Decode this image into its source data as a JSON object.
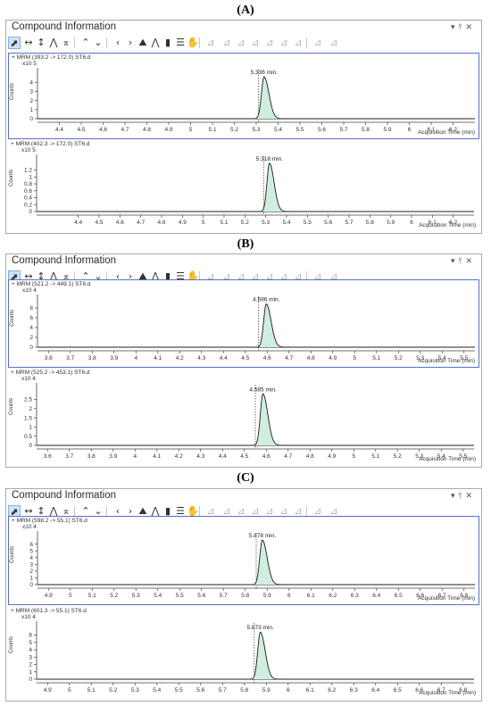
{
  "panel_labels": [
    "(A)",
    "(B)",
    "(C)"
  ],
  "window": {
    "title": "Compound Information",
    "buttons": [
      "▾",
      "⫯",
      "✕"
    ]
  },
  "toolbar": {
    "icons": [
      "select-icon",
      "h-zoom-icon",
      "v-zoom-icon",
      "peak-icon",
      "baseline-icon",
      "up-icon",
      "down-icon",
      "prev-icon",
      "next-icon",
      "chart-icon",
      "overlay-icon",
      "bar-icon",
      "stack-icon",
      "hand-icon",
      "int-1",
      "int-2",
      "int-3",
      "int-4",
      "int-5",
      "int-6",
      "int-7",
      "int-8",
      "int-9",
      "int-10"
    ]
  },
  "x_axis_label": "Acquisition Time (min)",
  "y_axis_label": "Counts",
  "chart_data": [
    {
      "type": "line",
      "panel": "A",
      "trace": "+ MRM (393.2 -> 172.0) ST6.d",
      "multiplier": "x10 5",
      "peak_label": "5.336 min.",
      "peak_time": 5.336,
      "peak_height": 4.6,
      "xlim": [
        4.3,
        6.3
      ],
      "xticks": [
        "4.4",
        "4.5",
        "4.6",
        "4.7",
        "4.8",
        "4.9",
        "5",
        "5.1",
        "5.2",
        "5.3",
        "5.4",
        "5.5",
        "5.6",
        "5.7",
        "5.8",
        "5.9",
        "6",
        "6.1",
        "6.2"
      ],
      "yticks": [
        0,
        1,
        2,
        3,
        4
      ],
      "ylim": [
        0,
        5.2
      ],
      "marker_time": 5.31,
      "xlabel": "Acquisition Time (min)"
    },
    {
      "type": "line",
      "panel": "A",
      "trace": "+ MRM (402.3 -> 172.0) ST6.d",
      "multiplier": "x10 5",
      "peak_label": "5.318 min.",
      "peak_time": 5.318,
      "peak_height": 1.4,
      "xlim": [
        4.2,
        6.3
      ],
      "xticks": [
        "4.4",
        "4.5",
        "4.6",
        "4.7",
        "4.8",
        "4.9",
        "5",
        "5.1",
        "5.2",
        "5.3",
        "5.4",
        "5.5",
        "5.6",
        "5.7",
        "5.8",
        "5.9",
        "6",
        "6.1",
        "6.2"
      ],
      "yticks": [
        0,
        0.2,
        0.4,
        0.6,
        0.8,
        1,
        1.2
      ],
      "ylim": [
        0,
        1.55
      ],
      "marker_time": 5.29,
      "xlabel": "Acquisition Time (min)"
    },
    {
      "type": "line",
      "panel": "B",
      "trace": "+ MRM (521.2 -> 449.1) ST6.d",
      "multiplier": "x10 4",
      "peak_label": "4.596 min.",
      "peak_time": 4.596,
      "peak_height": 8.8,
      "xlim": [
        3.55,
        5.55
      ],
      "xticks": [
        "3.6",
        "3.7",
        "3.8",
        "3.9",
        "4",
        "4.1",
        "4.2",
        "4.3",
        "4.4",
        "4.5",
        "4.6",
        "4.7",
        "4.8",
        "4.9",
        "5",
        "5.1",
        "5.2",
        "5.3",
        "5.4",
        "5.5"
      ],
      "yticks": [
        0,
        2,
        4,
        6,
        8
      ],
      "ylim": [
        0,
        10
      ],
      "marker_time": 4.56,
      "xlabel": "Acquisition Time (min)"
    },
    {
      "type": "line",
      "panel": "B",
      "trace": "+ MRM (525.2 -> 453.1) ST6.d",
      "multiplier": "x10 4",
      "peak_label": "4.585 min.",
      "peak_time": 4.585,
      "peak_height": 2.8,
      "xlim": [
        3.55,
        5.55
      ],
      "xticks": [
        "3.6",
        "3.7",
        "3.8",
        "3.9",
        "4",
        "4.1",
        "4.2",
        "4.3",
        "4.4",
        "4.5",
        "4.6",
        "4.7",
        "4.8",
        "4.9",
        "5",
        "5.1",
        "5.2",
        "5.3",
        "5.4",
        "5.5"
      ],
      "yticks": [
        0,
        0.5,
        1,
        1.5,
        2,
        2.5
      ],
      "ylim": [
        0,
        3.2
      ],
      "marker_time": 4.55,
      "xlabel": "Acquisition Time (min)"
    },
    {
      "type": "line",
      "panel": "C",
      "trace": "+ MRM (598.2 -> 55.1) ST6.d",
      "multiplier": "x10 4",
      "peak_label": "5.878 min.",
      "peak_time": 5.878,
      "peak_height": 6.6,
      "xlim": [
        4.85,
        6.85
      ],
      "xticks": [
        "4.9",
        "5",
        "5.1",
        "5.2",
        "5.3",
        "5.4",
        "5.5",
        "5.6",
        "5.7",
        "5.8",
        "5.9",
        "6",
        "6.1",
        "6.2",
        "6.3",
        "6.4",
        "6.5",
        "6.6",
        "6.7",
        "6.8"
      ],
      "yticks": [
        0,
        1,
        2,
        3,
        4,
        5,
        6
      ],
      "ylim": [
        0,
        7.4
      ],
      "marker_time": 5.85,
      "xlabel": "Acquisition Time (min)"
    },
    {
      "type": "line",
      "panel": "C",
      "trace": "+ MRM (601.3 -> 55.1) ST6.d",
      "multiplier": "x10 4",
      "peak_label": "5.873 min.",
      "peak_time": 5.873,
      "peak_height": 6.4,
      "xlim": [
        4.85,
        6.85
      ],
      "xticks": [
        "4.9",
        "5",
        "5.1",
        "5.2",
        "5.3",
        "5.4",
        "5.5",
        "5.6",
        "5.7",
        "5.8",
        "5.9",
        "6",
        "6.1",
        "6.2",
        "6.3",
        "6.4",
        "6.5",
        "6.6",
        "6.7",
        "6.8"
      ],
      "yticks": [
        0,
        1,
        2,
        3,
        4,
        5,
        6
      ],
      "ylim": [
        0,
        7.4
      ],
      "marker_time": 5.845,
      "xlabel": "Acquisition Time (min)"
    }
  ]
}
